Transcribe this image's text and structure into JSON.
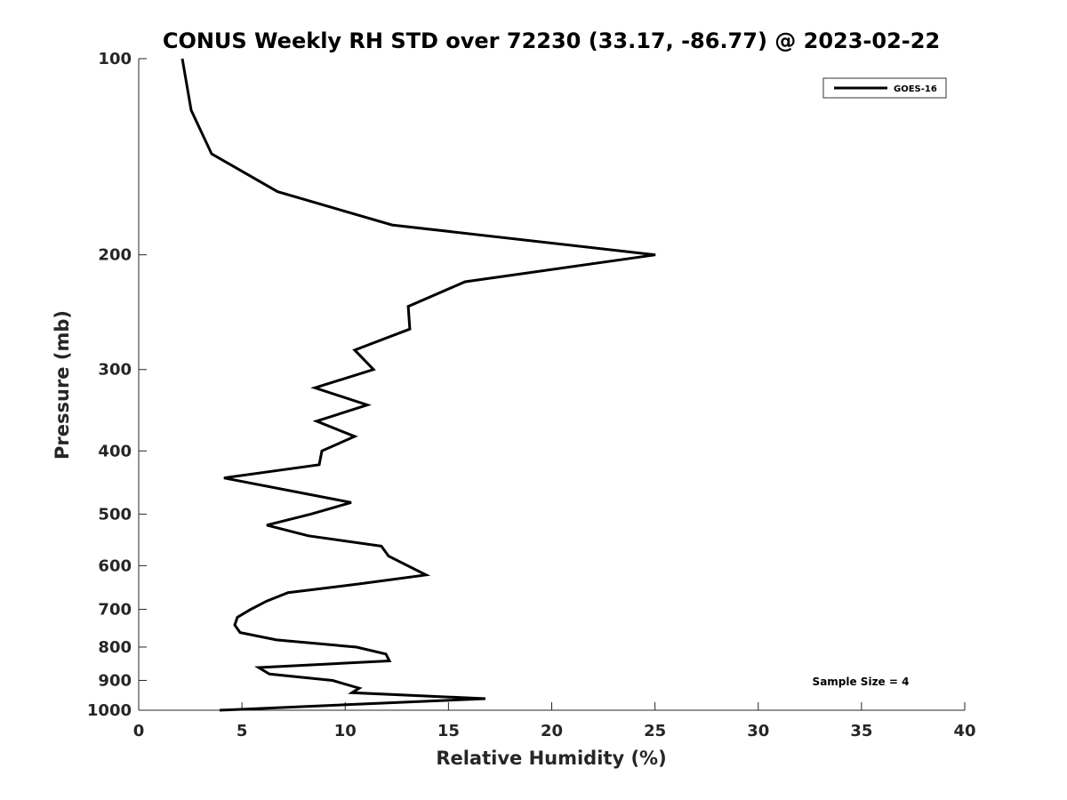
{
  "chart_data": {
    "type": "line",
    "title": "CONUS Weekly RH STD over 72230 (33.17, -86.77) @ 2023-02-22",
    "xlabel": "Relative Humidity (%)",
    "ylabel": "Pressure (mb)",
    "xlim": [
      0,
      40
    ],
    "ylim": [
      100,
      1000
    ],
    "yscale": "log",
    "yreversed": true,
    "grid": false,
    "xticks": [
      0,
      5,
      10,
      15,
      20,
      25,
      30,
      35,
      40
    ],
    "xtick_labels": [
      "0",
      "5",
      "10",
      "15",
      "20",
      "25",
      "30",
      "35",
      "40"
    ],
    "yticks": [
      100,
      200,
      300,
      400,
      500,
      600,
      700,
      800,
      900,
      1000
    ],
    "ytick_labels": [
      "100",
      "200",
      "300",
      "400",
      "500",
      "600",
      "700",
      "800",
      "900",
      "1000"
    ],
    "legend": {
      "placement": "top-right",
      "entries": [
        "GOES-16"
      ]
    },
    "annotations": [
      "Sample Size = 4"
    ],
    "series": [
      {
        "name": "GOES-16",
        "color": "#000000",
        "pressure": [
          100,
          120,
          140,
          160,
          180,
          200,
          220,
          240,
          260,
          280,
          300,
          320,
          340,
          360,
          380,
          400,
          420,
          440,
          480,
          500,
          520,
          540,
          560,
          580,
          620,
          640,
          660,
          680,
          700,
          720,
          740,
          760,
          780,
          800,
          820,
          840,
          860,
          880,
          900,
          925,
          940,
          960,
          1000
        ],
        "rh_std": [
          2.11,
          2.54,
          3.53,
          6.72,
          12.27,
          25.02,
          15.8,
          13.05,
          13.13,
          10.46,
          11.37,
          8.53,
          11.07,
          8.61,
          10.46,
          8.87,
          8.74,
          4.13,
          10.29,
          8.35,
          6.2,
          8.22,
          11.75,
          12.1,
          13.91,
          10.68,
          7.23,
          6.2,
          5.43,
          4.78,
          4.65,
          4.91,
          6.67,
          10.55,
          11.97,
          12.14,
          5.81,
          6.33,
          9.39,
          10.68,
          10.33,
          16.79,
          3.92
        ]
      }
    ]
  }
}
